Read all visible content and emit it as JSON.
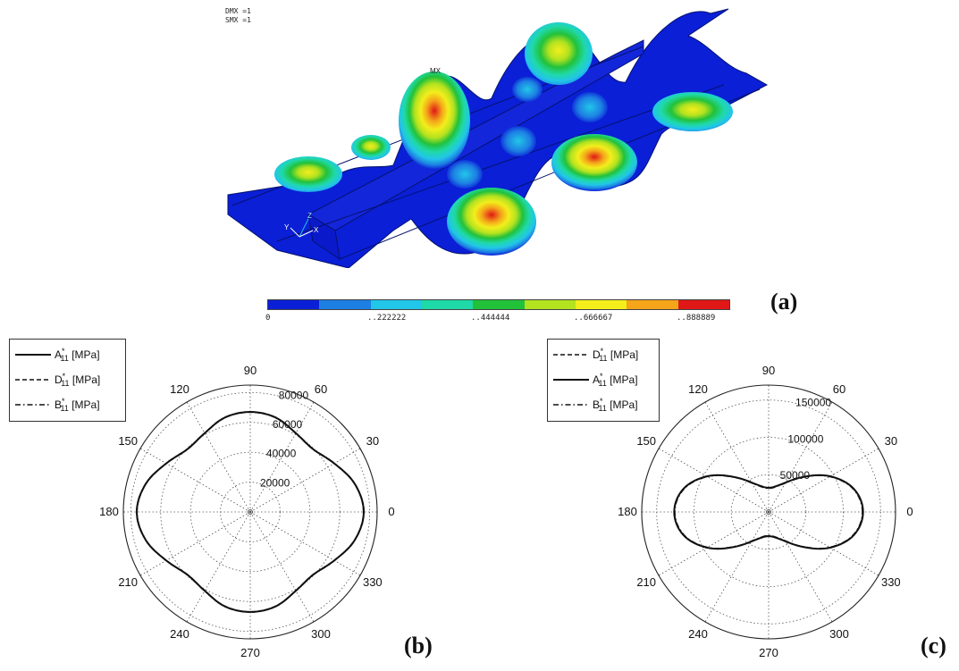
{
  "panel_a": {
    "label": "(a)",
    "note_lines": [
      "DMX =1",
      "SMX =1"
    ],
    "mx_label": "MX",
    "axes": {
      "x": "X",
      "y": "Y",
      "z": "Z"
    },
    "colorbar": {
      "colors": [
        "#0a1fd6",
        "#1d7fe3",
        "#22c6e8",
        "#1fd9a8",
        "#22c13a",
        "#b3e21f",
        "#f3ee1c",
        "#f4a51a",
        "#e01717"
      ],
      "tick_labels": [
        "0",
        "..222222",
        "..444444",
        "..666667",
        "..888889"
      ]
    }
  },
  "chart_data": [
    {
      "type": "line",
      "subtype": "polar",
      "panel_label": "(b)",
      "rlim": [
        0,
        85000
      ],
      "r_ticks": [
        "20000",
        "40000",
        "60000",
        "80000"
      ],
      "angle_ticks": [
        "0",
        "30",
        "60",
        "90",
        "120",
        "150",
        "180",
        "210",
        "240",
        "270",
        "300",
        "330"
      ],
      "legend_position": "top-left",
      "grid": true,
      "series": [
        {
          "name": "A",
          "sub": "11",
          "sup": "*",
          "unit": "[MPa]",
          "style": "solid",
          "theta": [
            0,
            15,
            30,
            45,
            60,
            75,
            90,
            105,
            120,
            135,
            150,
            165,
            180,
            195,
            210,
            225,
            240,
            255,
            270,
            285,
            300,
            315,
            330,
            345,
            360
          ],
          "r": [
            76000,
            72500,
            65000,
            59500,
            61000,
            65500,
            67000,
            65500,
            61000,
            59500,
            65000,
            72500,
            76000,
            72500,
            65000,
            59500,
            61000,
            65500,
            67000,
            65500,
            61000,
            59500,
            65000,
            72500,
            76000
          ]
        },
        {
          "name": "D",
          "sub": "11",
          "sup": "*",
          "unit": "[MPa]",
          "style": "dashed",
          "theta": [
            0,
            15,
            30,
            45,
            60,
            75,
            90,
            105,
            120,
            135,
            150,
            165,
            180,
            195,
            210,
            225,
            240,
            255,
            270,
            285,
            300,
            315,
            330,
            345,
            360
          ],
          "r": [
            75800,
            72300,
            64800,
            59300,
            60800,
            65300,
            66800,
            65300,
            60800,
            59300,
            64800,
            72300,
            75800,
            72300,
            64800,
            59300,
            60800,
            65300,
            66800,
            65300,
            60800,
            59300,
            64800,
            72300,
            75800
          ]
        },
        {
          "name": "B",
          "sub": "11",
          "sup": "*",
          "unit": "[MPa]",
          "style": "dashdot",
          "theta": [
            0,
            15,
            30,
            45,
            60,
            75,
            90,
            105,
            120,
            135,
            150,
            165,
            180,
            195,
            210,
            225,
            240,
            255,
            270,
            285,
            300,
            315,
            330,
            345,
            360
          ],
          "r": [
            76200,
            72700,
            65200,
            59700,
            61200,
            65700,
            67200,
            65700,
            61200,
            59700,
            65200,
            72700,
            76200,
            72700,
            65200,
            59700,
            61200,
            65700,
            67200,
            65700,
            61200,
            59700,
            65200,
            72700,
            76200
          ]
        }
      ]
    },
    {
      "type": "line",
      "subtype": "polar",
      "panel_label": "(c)",
      "rlim": [
        0,
        170000
      ],
      "r_ticks": [
        "50000",
        "100000",
        "150000"
      ],
      "angle_ticks": [
        "0",
        "30",
        "60",
        "90",
        "120",
        "150",
        "180",
        "210",
        "240",
        "270",
        "300",
        "330"
      ],
      "legend_position": "top-left",
      "grid": true,
      "series": [
        {
          "name": "D",
          "sub": "11",
          "sup": "*",
          "unit": "[MPa]",
          "style": "dashed",
          "theta": [
            0,
            15,
            30,
            45,
            60,
            75,
            90,
            105,
            120,
            135,
            150,
            165,
            180,
            195,
            210,
            225,
            240,
            255,
            270,
            285,
            300,
            315,
            330,
            345,
            360
          ],
          "r": [
            126000,
            118000,
            95000,
            66000,
            45000,
            35000,
            32000,
            35000,
            45000,
            66000,
            95000,
            118000,
            126000,
            118000,
            95000,
            66000,
            45000,
            35000,
            32000,
            35000,
            45000,
            66000,
            95000,
            118000,
            126000
          ]
        },
        {
          "name": "A",
          "sub": "11",
          "sup": "*",
          "unit": "[MPa]",
          "style": "solid",
          "theta": [
            0,
            15,
            30,
            45,
            60,
            75,
            90,
            105,
            120,
            135,
            150,
            165,
            180,
            195,
            210,
            225,
            240,
            255,
            270,
            285,
            300,
            315,
            330,
            345,
            360
          ],
          "r": [
            126500,
            118500,
            95500,
            66500,
            45500,
            35500,
            32500,
            35500,
            45500,
            66500,
            95500,
            118500,
            126500,
            118500,
            95500,
            66500,
            45500,
            35500,
            32500,
            35500,
            45500,
            66500,
            95500,
            118500,
            126500
          ]
        },
        {
          "name": "B",
          "sub": "11",
          "sup": "*",
          "unit": "[MPa]",
          "style": "dashdot",
          "theta": [
            0,
            15,
            30,
            45,
            60,
            75,
            90,
            105,
            120,
            135,
            150,
            165,
            180,
            195,
            210,
            225,
            240,
            255,
            270,
            285,
            300,
            315,
            330,
            345,
            360
          ],
          "r": [
            125500,
            117500,
            94500,
            65500,
            44500,
            34500,
            31500,
            34500,
            44500,
            65500,
            94500,
            117500,
            125500,
            117500,
            94500,
            65500,
            44500,
            34500,
            31500,
            34500,
            44500,
            65500,
            94500,
            117500,
            125500
          ]
        }
      ]
    }
  ]
}
